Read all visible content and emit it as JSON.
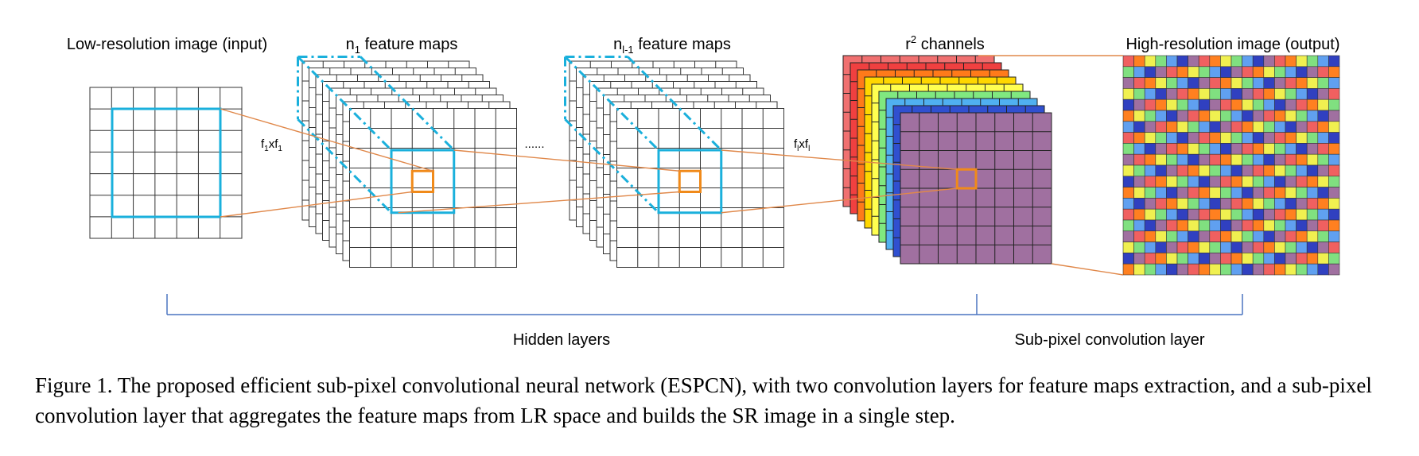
{
  "labels": {
    "input": "Low-resolution image (input)",
    "n1_base": "n",
    "n1_sub": "1",
    "n1_rest": " feature maps",
    "nl_base": "n",
    "nl_sub": "l-1",
    "nl_rest": " feature maps",
    "r2_base": "r",
    "r2_sup": "2",
    "r2_rest": " channels",
    "output": "High-resolution image (output)",
    "filter1_base": "f",
    "filter1_sub1": "1",
    "filter1_x": "xf",
    "filter1_sub2": "1",
    "filterl_base": "f",
    "filterl_sub1": "l",
    "filterl_x": "xf",
    "filterl_sub2": "l",
    "ellipsis": "......",
    "hidden_layers": "Hidden layers",
    "subpixel_layer": "Sub-pixel convolution layer"
  },
  "caption": "Figure 1. The proposed efficient sub-pixel convolutional neural network (ESPCN), with two convolution layers for feature maps extraction, and a sub-pixel convolution layer that aggregates the feature maps from LR space and builds the SR image in a single step.",
  "colors": {
    "grid": "#333333",
    "receptive": "#1ab0dc",
    "kernel": "#f08a1a",
    "connector": "#e0884a",
    "bracket": "#4a74c0",
    "channels": [
      "#f07070",
      "#f04040",
      "#ff7a1a",
      "#ffd700",
      "#ffff50",
      "#80e880",
      "#50b0f0",
      "#3050d0",
      "#a070a0"
    ],
    "output_palette": [
      "#f06060",
      "#ff8020",
      "#f0f050",
      "#80e080",
      "#60a0f0",
      "#3040c0",
      "#a070a0"
    ]
  }
}
